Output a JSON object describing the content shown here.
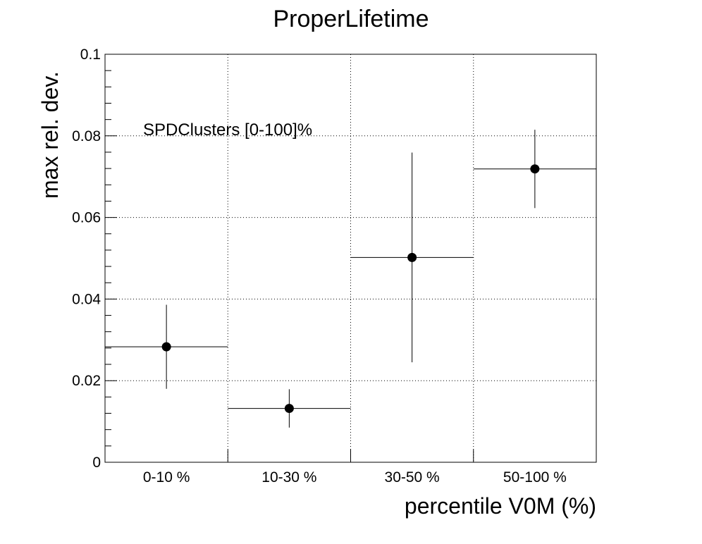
{
  "chart_data": {
    "type": "scatter",
    "title": "ProperLifetime",
    "xlabel": "percentile V0M (%)",
    "ylabel": "max rel. dev.",
    "annotation": "SPDClusters [0-100]%",
    "categories": [
      "0-10 %",
      "10-30 %",
      "30-50 %",
      "50-100 %"
    ],
    "ylim": [
      0,
      0.1
    ],
    "yticks": [
      0,
      0.02,
      0.04,
      0.06,
      0.08,
      0.1
    ],
    "ytick_labels": [
      "0",
      "0.02",
      "0.04",
      "0.06",
      "0.08",
      "0.1"
    ],
    "grid": true,
    "series": [
      {
        "values": [
          0.0283,
          0.0132,
          0.0502,
          0.0719
        ],
        "y_err_low": [
          0.0103,
          0.0047,
          0.0257,
          0.0096
        ],
        "y_err_high": [
          0.0103,
          0.0047,
          0.0257,
          0.0096
        ],
        "color": "#000000"
      }
    ]
  }
}
